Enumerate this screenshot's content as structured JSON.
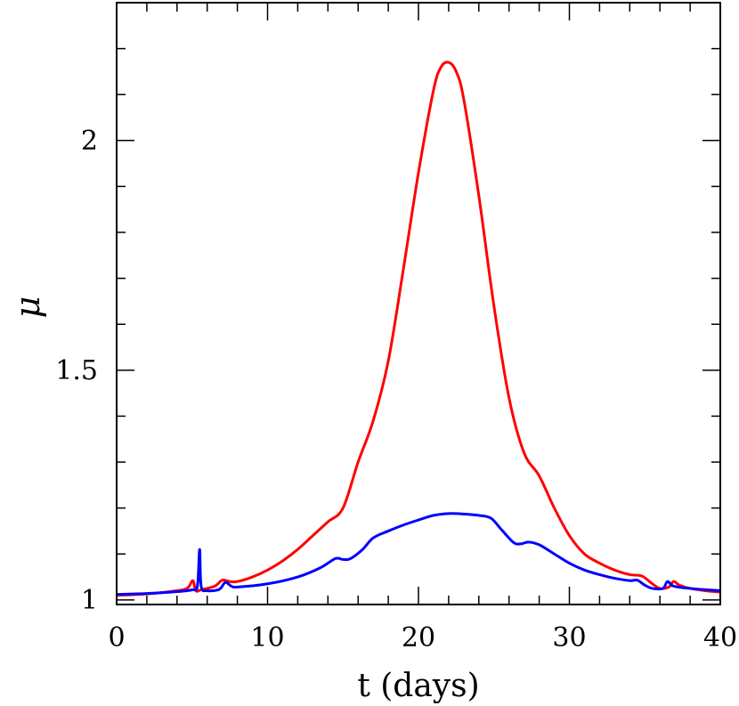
{
  "chart_data": {
    "type": "line",
    "title": "",
    "xlabel": "t (days)",
    "ylabel": "μ",
    "xlim": [
      0,
      40
    ],
    "ylim": [
      0.99,
      2.3
    ],
    "grid": false,
    "x_ticks": [
      0,
      10,
      20,
      30,
      40
    ],
    "x_tick_labels": [
      "0",
      "10",
      "20",
      "30",
      "40"
    ],
    "y_ticks": [
      1,
      1.5,
      2
    ],
    "y_tick_labels": [
      "1",
      "1.5",
      "2"
    ],
    "series": [
      {
        "color": "#ff0000",
        "points": [
          [
            0,
            1.01
          ],
          [
            2,
            1.013
          ],
          [
            4,
            1.02
          ],
          [
            4.7,
            1.026
          ],
          [
            5.05,
            1.042
          ],
          [
            5.25,
            1.02
          ],
          [
            5.6,
            1.022
          ],
          [
            6.5,
            1.03
          ],
          [
            7.0,
            1.043
          ],
          [
            7.5,
            1.04
          ],
          [
            8.0,
            1.04
          ],
          [
            9,
            1.05
          ],
          [
            10,
            1.065
          ],
          [
            11,
            1.085
          ],
          [
            12,
            1.11
          ],
          [
            13,
            1.14
          ],
          [
            14,
            1.17
          ],
          [
            15,
            1.2
          ],
          [
            16,
            1.3
          ],
          [
            17,
            1.39
          ],
          [
            18,
            1.52
          ],
          [
            19,
            1.72
          ],
          [
            20,
            1.93
          ],
          [
            21,
            2.11
          ],
          [
            21.5,
            2.16
          ],
          [
            22,
            2.17
          ],
          [
            22.5,
            2.15
          ],
          [
            23,
            2.09
          ],
          [
            24,
            1.88
          ],
          [
            25,
            1.64
          ],
          [
            26,
            1.44
          ],
          [
            27,
            1.32
          ],
          [
            28,
            1.27
          ],
          [
            29,
            1.2
          ],
          [
            30,
            1.14
          ],
          [
            31,
            1.1
          ],
          [
            32,
            1.08
          ],
          [
            33,
            1.065
          ],
          [
            34,
            1.055
          ],
          [
            34.8,
            1.052
          ],
          [
            35.5,
            1.035
          ],
          [
            36,
            1.025
          ],
          [
            36.6,
            1.028
          ],
          [
            36.9,
            1.04
          ],
          [
            37.3,
            1.032
          ],
          [
            38,
            1.025
          ],
          [
            39,
            1.02
          ],
          [
            40,
            1.017
          ]
        ]
      },
      {
        "color": "#0000ff",
        "points": [
          [
            0,
            1.012
          ],
          [
            2,
            1.014
          ],
          [
            4,
            1.018
          ],
          [
            5.0,
            1.022
          ],
          [
            5.35,
            1.03
          ],
          [
            5.5,
            1.11
          ],
          [
            5.6,
            1.03
          ],
          [
            6.0,
            1.02
          ],
          [
            6.8,
            1.023
          ],
          [
            7.2,
            1.038
          ],
          [
            7.6,
            1.03
          ],
          [
            8,
            1.028
          ],
          [
            10,
            1.035
          ],
          [
            12,
            1.05
          ],
          [
            13.5,
            1.07
          ],
          [
            14.5,
            1.09
          ],
          [
            15,
            1.088
          ],
          [
            15.5,
            1.09
          ],
          [
            16.3,
            1.11
          ],
          [
            17,
            1.135
          ],
          [
            18,
            1.15
          ],
          [
            19,
            1.163
          ],
          [
            20,
            1.174
          ],
          [
            21,
            1.184
          ],
          [
            22,
            1.188
          ],
          [
            23,
            1.187
          ],
          [
            24,
            1.184
          ],
          [
            24.8,
            1.178
          ],
          [
            25.5,
            1.153
          ],
          [
            26.3,
            1.125
          ],
          [
            26.8,
            1.122
          ],
          [
            27.3,
            1.126
          ],
          [
            28,
            1.12
          ],
          [
            29,
            1.1
          ],
          [
            30,
            1.08
          ],
          [
            31,
            1.065
          ],
          [
            32,
            1.055
          ],
          [
            33,
            1.047
          ],
          [
            34,
            1.042
          ],
          [
            34.5,
            1.043
          ],
          [
            35,
            1.032
          ],
          [
            35.5,
            1.025
          ],
          [
            36.2,
            1.025
          ],
          [
            36.5,
            1.04
          ],
          [
            36.9,
            1.03
          ],
          [
            38,
            1.025
          ],
          [
            40,
            1.02
          ]
        ]
      }
    ]
  }
}
